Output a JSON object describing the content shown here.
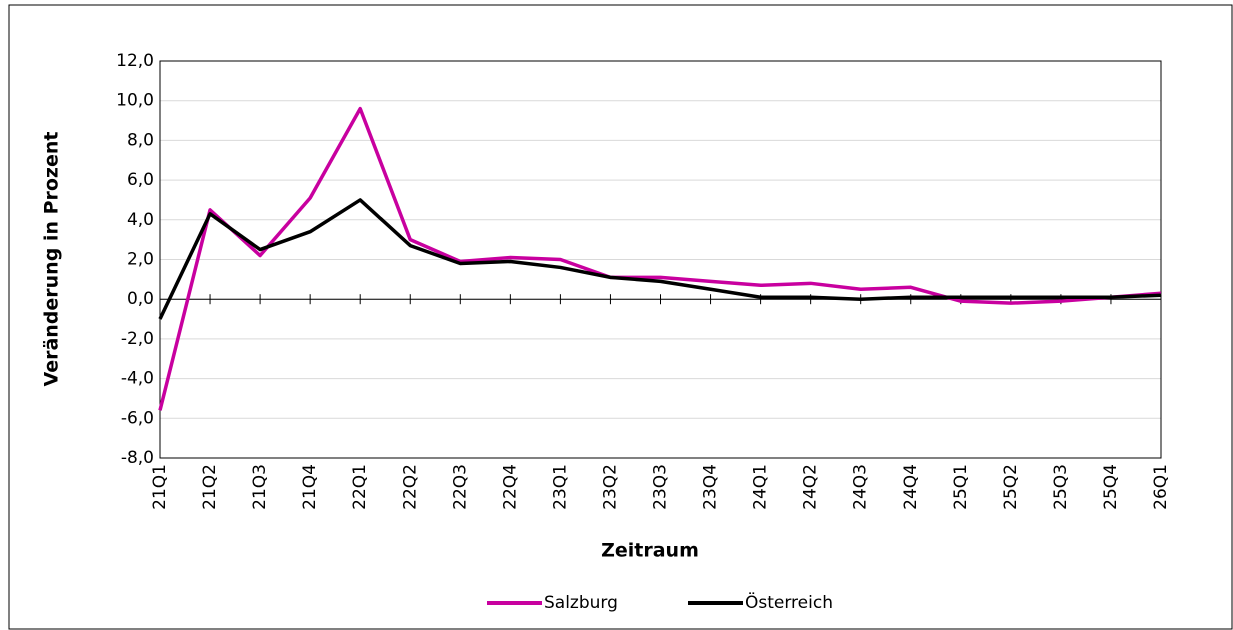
{
  "chart_data": {
    "type": "line",
    "x_label": "Zeitraum",
    "y_label": "Veränderung in Prozent",
    "categories": [
      "21Q1",
      "21Q2",
      "21Q3",
      "21Q4",
      "22Q1",
      "22Q2",
      "22Q3",
      "22Q4",
      "23Q1",
      "23Q2",
      "23Q3",
      "23Q4",
      "24Q1",
      "24Q2",
      "24Q3",
      "24Q4",
      "25Q1",
      "25Q2",
      "25Q3",
      "25Q4",
      "26Q1"
    ],
    "series": [
      {
        "name": "Salzburg",
        "color": "#c8009f",
        "values": [
          -5.6,
          4.5,
          2.2,
          5.1,
          9.6,
          3.0,
          1.9,
          2.1,
          2.0,
          1.1,
          1.1,
          0.9,
          0.7,
          0.8,
          0.5,
          0.6,
          -0.1,
          -0.2,
          -0.1,
          0.1,
          0.3
        ]
      },
      {
        "name": "Österreich",
        "color": "#000000",
        "values": [
          -1.0,
          4.3,
          2.5,
          3.4,
          5.0,
          2.7,
          1.8,
          1.9,
          1.6,
          1.1,
          0.9,
          0.5,
          0.1,
          0.1,
          0.0,
          0.1,
          0.1,
          0.1,
          0.1,
          0.1,
          0.2
        ]
      }
    ],
    "ylim": [
      -8,
      12
    ],
    "yticks": [
      {
        "value": -8,
        "label": "-8,0"
      },
      {
        "value": -6,
        "label": "-6,0"
      },
      {
        "value": -4,
        "label": "-4,0"
      },
      {
        "value": -2,
        "label": "-2,0"
      },
      {
        "value": 0,
        "label": "0,0"
      },
      {
        "value": 2,
        "label": "2,0"
      },
      {
        "value": 4,
        "label": "4,0"
      },
      {
        "value": 6,
        "label": "6,0"
      },
      {
        "value": 8,
        "label": "8,0"
      },
      {
        "value": 10,
        "label": "10,0"
      },
      {
        "value": 12,
        "label": "12,0"
      }
    ],
    "grid": true,
    "legend": "bottom"
  }
}
